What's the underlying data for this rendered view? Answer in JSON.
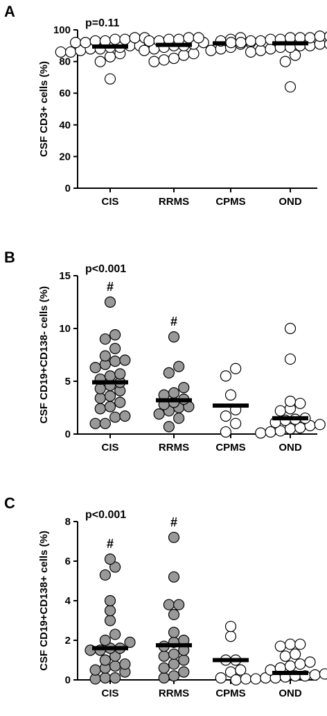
{
  "chart_data": [
    {
      "type": "scatter",
      "panel": "A",
      "ylabel": "CSF CD3+ cells (%)",
      "pvalue": "p=0.11",
      "ylim": [
        0,
        100
      ],
      "yticks": [
        0,
        20,
        40,
        60,
        80,
        100
      ],
      "categories": [
        "CIS",
        "RRMS",
        "CPMS",
        "OND"
      ],
      "fill_colors": [
        "#ffffff",
        "#ffffff",
        "#ffffff",
        "#ffffff"
      ],
      "significance": [
        "",
        "",
        "",
        ""
      ],
      "means": [
        89.5,
        90.5,
        91.5,
        91.5
      ],
      "groups": [
        [
          69,
          80,
          83,
          85,
          86,
          86,
          87,
          88,
          88,
          89,
          89,
          90,
          90,
          91,
          91,
          92,
          92,
          93,
          93,
          94,
          94,
          95,
          95
        ],
        [
          80,
          81,
          82,
          84,
          85,
          87,
          88,
          89,
          90,
          90,
          91,
          92,
          93,
          93,
          94,
          94,
          95,
          95
        ],
        [
          87,
          88,
          89,
          91,
          92,
          93,
          94,
          95
        ],
        [
          64,
          80,
          84,
          86,
          87,
          88,
          89,
          89,
          90,
          90,
          91,
          91,
          92,
          92,
          93,
          93,
          94,
          94,
          95,
          95,
          95,
          96,
          96,
          96,
          97
        ]
      ]
    },
    {
      "type": "scatter",
      "panel": "B",
      "ylabel": "CSF CD19+CD138- cells (%)",
      "pvalue": "p<0.001",
      "ylim": [
        0,
        15
      ],
      "yticks": [
        0,
        5,
        10,
        15
      ],
      "categories": [
        "CIS",
        "RRMS",
        "CPMS",
        "OND"
      ],
      "fill_colors": [
        "#999999",
        "#999999",
        "#ffffff",
        "#ffffff"
      ],
      "significance": [
        "#",
        "#",
        "",
        ""
      ],
      "means": [
        4.9,
        3.2,
        2.7,
        1.5
      ],
      "groups": [
        [
          1.0,
          1.0,
          1.6,
          1.7,
          2.4,
          2.6,
          3.0,
          3.4,
          3.6,
          4.1,
          4.3,
          4.6,
          4.9,
          5.2,
          5.5,
          5.7,
          6.3,
          6.6,
          6.9,
          7.0,
          7.4,
          8.1,
          9.0,
          9.4,
          12.5
        ],
        [
          0.7,
          1.5,
          1.9,
          2.2,
          2.5,
          2.6,
          2.8,
          3.0,
          3.3,
          3.7,
          3.9,
          4.4,
          5.8,
          6.4,
          9.2
        ],
        [
          0.2,
          1.0,
          1.7,
          2.3,
          3.7,
          5.5,
          6.2
        ],
        [
          0.1,
          0.2,
          0.3,
          0.5,
          0.6,
          0.8,
          0.9,
          1.1,
          1.3,
          1.4,
          1.5,
          2.2,
          2.4,
          2.9,
          3.1,
          7.1,
          10.0
        ]
      ]
    },
    {
      "type": "scatter",
      "panel": "C",
      "ylabel": "CSF CD19+CD138+ cells (%)",
      "pvalue": "p<0.001",
      "ylim": [
        0,
        8
      ],
      "yticks": [
        0,
        2,
        4,
        6,
        8
      ],
      "categories": [
        "CIS",
        "RRMS",
        "CPMS",
        "OND"
      ],
      "fill_colors": [
        "#999999",
        "#999999",
        "#ffffff",
        "#ffffff"
      ],
      "significance": [
        "#",
        "#",
        "",
        ""
      ],
      "means": [
        1.6,
        1.75,
        1.0,
        0.35
      ],
      "groups": [
        [
          0.05,
          0.1,
          0.1,
          0.4,
          0.5,
          0.6,
          0.7,
          0.8,
          1.0,
          1.2,
          1.5,
          1.5,
          1.6,
          1.6,
          1.9,
          2.0,
          2.3,
          3.0,
          3.5,
          4.0,
          5.3,
          5.7,
          6.1
        ],
        [
          0.1,
          0.2,
          0.4,
          0.6,
          0.8,
          1.0,
          1.2,
          1.3,
          1.5,
          1.7,
          1.9,
          2.0,
          2.4,
          3.3,
          3.8,
          3.8,
          5.2,
          7.2
        ],
        [
          0.1,
          0.4,
          0.5,
          1.0,
          1.0,
          2.2,
          2.7
        ],
        [
          0.0,
          0.05,
          0.05,
          0.1,
          0.1,
          0.15,
          0.2,
          0.2,
          0.25,
          0.3,
          0.35,
          0.4,
          0.5,
          0.6,
          0.7,
          0.8,
          0.9,
          1.2,
          1.3,
          1.7,
          1.8,
          1.8
        ]
      ]
    }
  ]
}
